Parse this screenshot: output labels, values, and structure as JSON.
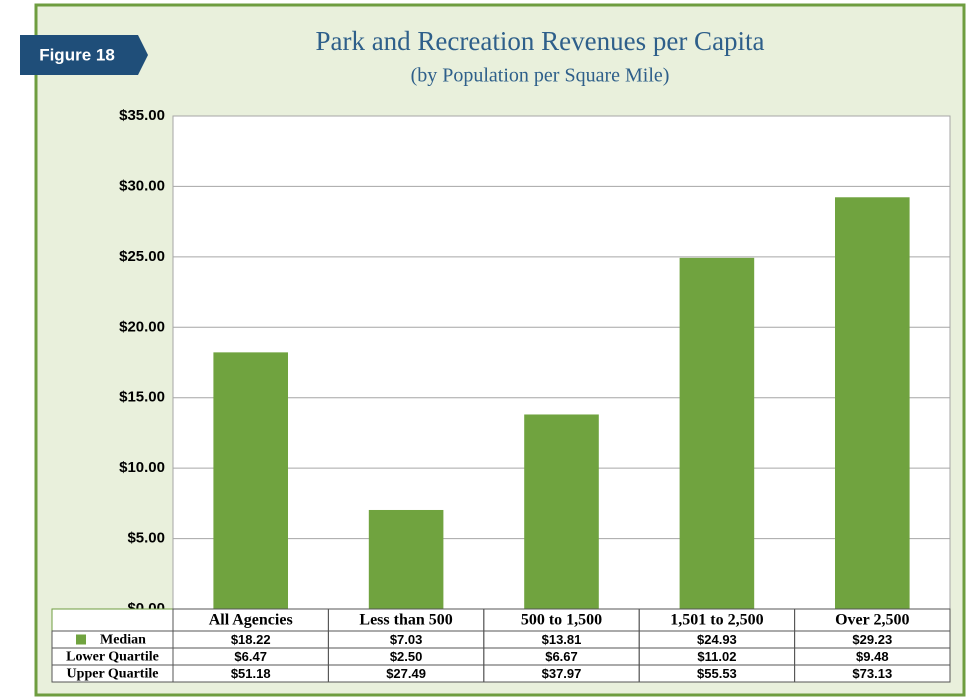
{
  "figure_label": "Figure 18",
  "chart_data": {
    "type": "bar",
    "title": "Park and Recreation Revenues per Capita",
    "subtitle": "(by Population per Square Mile)",
    "categories": [
      "All Agencies",
      "Less than 500",
      "500 to 1,500",
      "1,501 to 2,500",
      "Over 2,500"
    ],
    "series": [
      {
        "name": "Median",
        "color": "#70a33f",
        "values": [
          18.22,
          7.03,
          13.81,
          24.93,
          29.23
        ],
        "value_labels": [
          "$18.22",
          "$7.03",
          "$13.81",
          "$24.93",
          "$29.23"
        ]
      },
      {
        "name": "Lower Quartile",
        "values": [
          6.47,
          2.5,
          6.67,
          11.02,
          9.48
        ],
        "value_labels": [
          "$6.47",
          "$2.50",
          "$6.67",
          "$11.02",
          "$9.48"
        ]
      },
      {
        "name": "Upper Quartile",
        "values": [
          51.18,
          27.49,
          37.97,
          55.53,
          73.13
        ],
        "value_labels": [
          "$51.18",
          "$27.49",
          "$37.97",
          "$55.53",
          "$73.13"
        ]
      }
    ],
    "ylim": [
      0,
      35
    ],
    "yticks": [
      {
        "value": 0,
        "label": "$0.00"
      },
      {
        "value": 5,
        "label": "$5.00"
      },
      {
        "value": 10,
        "label": "$10.00"
      },
      {
        "value": 15,
        "label": "$15.00"
      },
      {
        "value": 20,
        "label": "$20.00"
      },
      {
        "value": 25,
        "label": "$25.00"
      },
      {
        "value": 30,
        "label": "$30.00"
      },
      {
        "value": 35,
        "label": "$35.00"
      }
    ],
    "grid": true
  }
}
